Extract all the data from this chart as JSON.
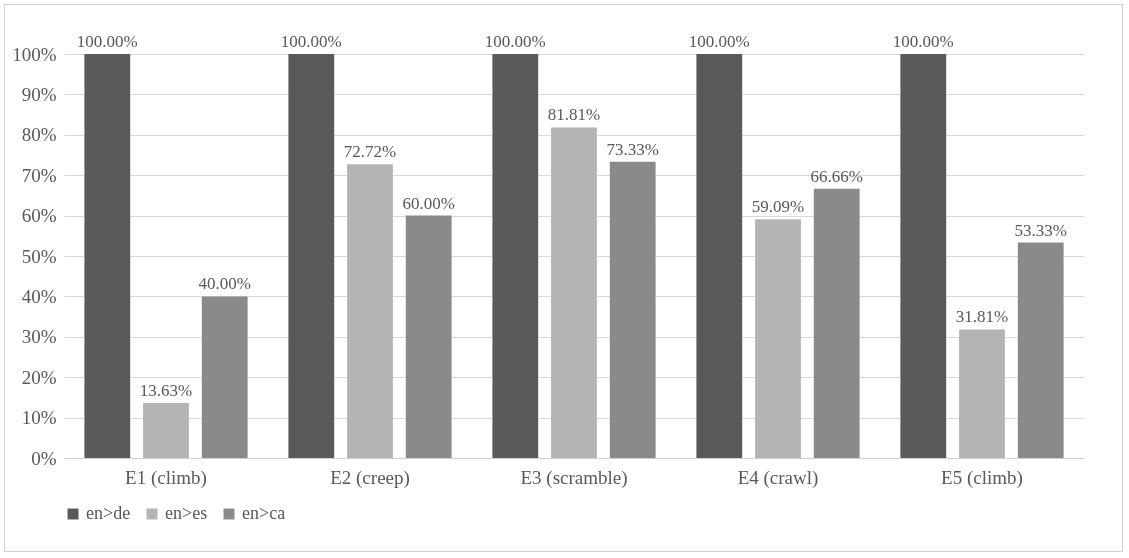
{
  "chart_data": {
    "type": "bar",
    "categories": [
      "E1 (climb)",
      "E2 (creep)",
      "E3 (scramble)",
      "E4 (crawl)",
      "E5 (climb)"
    ],
    "series": [
      {
        "name": "en>de",
        "color": "#595959",
        "values": [
          100,
          100,
          100,
          100,
          100
        ],
        "value_labels": [
          "100.00%",
          "100.00%",
          "100.00%",
          "100.00%",
          "100.00%"
        ]
      },
      {
        "name": "en>es",
        "color": "#b4b4b4",
        "values": [
          13.63,
          72.72,
          81.81,
          59.09,
          31.81
        ],
        "value_labels": [
          "13.63%",
          "72.72%",
          "81.81%",
          "59.09%",
          "31.81%"
        ]
      },
      {
        "name": "en>ca",
        "color": "#8a8a8a",
        "values": [
          40,
          60,
          73.33,
          66.66,
          53.33
        ],
        "value_labels": [
          "40.00%",
          "60.00%",
          "73.33%",
          "66.66%",
          "53.33%"
        ]
      }
    ],
    "ylim": [
      0,
      100
    ],
    "yticks": [
      {
        "value": 0,
        "label": "0%"
      },
      {
        "value": 10,
        "label": "10%"
      },
      {
        "value": 20,
        "label": "20%"
      },
      {
        "value": 30,
        "label": "30%"
      },
      {
        "value": 40,
        "label": "40%"
      },
      {
        "value": 50,
        "label": "50%"
      },
      {
        "value": 60,
        "label": "60%"
      },
      {
        "value": 70,
        "label": "70%"
      },
      {
        "value": 80,
        "label": "80%"
      },
      {
        "value": 90,
        "label": "90%"
      },
      {
        "value": 100,
        "label": "100%"
      }
    ],
    "grid": "y",
    "legend": "bottom"
  }
}
